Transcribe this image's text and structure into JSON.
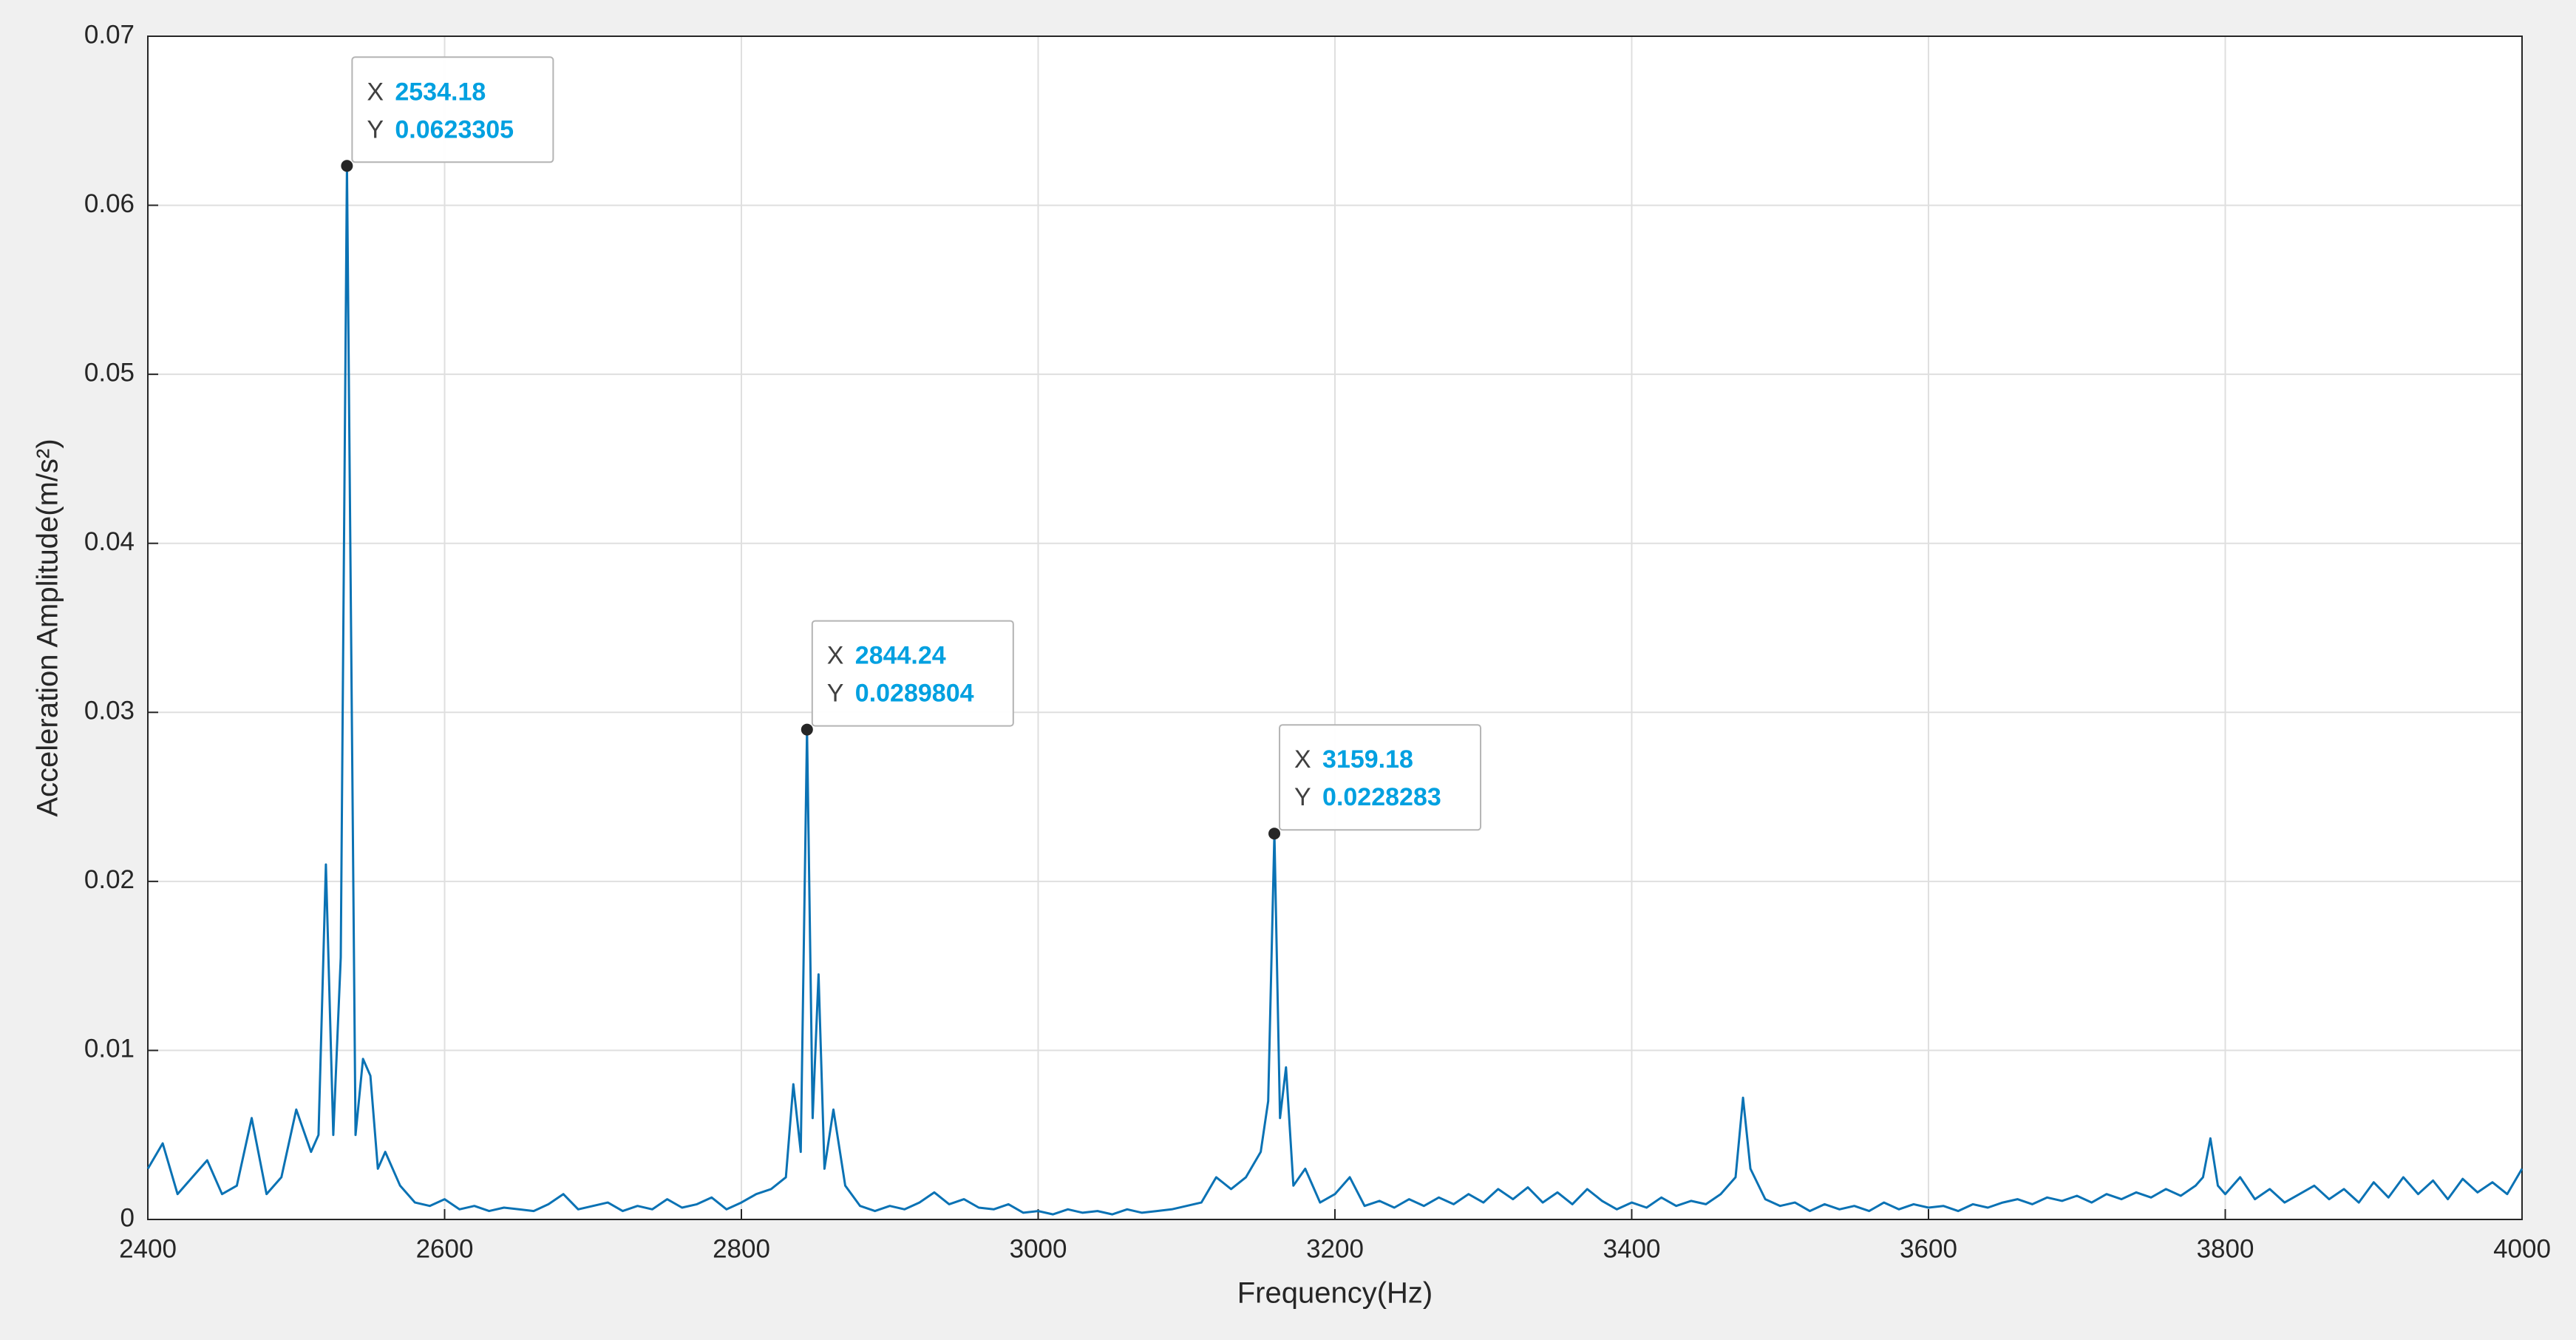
{
  "chart_data": {
    "type": "line",
    "xlabel": "Frequency(Hz)",
    "ylabel": "Acceleration Amplitude(m/s²)",
    "x": [
      2400,
      2410,
      2420,
      2430,
      2440,
      2450,
      2460,
      2470,
      2480,
      2490,
      2500,
      2510,
      2515,
      2520,
      2525,
      2530,
      2534.18,
      2540,
      2545,
      2550,
      2555,
      2560,
      2570,
      2580,
      2590,
      2600,
      2610,
      2620,
      2630,
      2640,
      2650,
      2660,
      2670,
      2680,
      2690,
      2700,
      2710,
      2720,
      2730,
      2740,
      2750,
      2760,
      2770,
      2780,
      2790,
      2800,
      2810,
      2820,
      2830,
      2835,
      2840,
      2844.24,
      2848,
      2852,
      2856,
      2862,
      2870,
      2880,
      2890,
      2900,
      2910,
      2920,
      2930,
      2940,
      2950,
      2960,
      2970,
      2980,
      2990,
      3000,
      3010,
      3020,
      3030,
      3040,
      3050,
      3060,
      3070,
      3080,
      3090,
      3100,
      3110,
      3120,
      3130,
      3140,
      3150,
      3155,
      3159.18,
      3163,
      3167,
      3172,
      3180,
      3190,
      3200,
      3210,
      3220,
      3230,
      3240,
      3250,
      3260,
      3270,
      3280,
      3290,
      3300,
      3310,
      3320,
      3330,
      3340,
      3350,
      3360,
      3370,
      3380,
      3390,
      3400,
      3410,
      3420,
      3430,
      3440,
      3450,
      3460,
      3470,
      3475,
      3480,
      3490,
      3500,
      3510,
      3520,
      3530,
      3540,
      3550,
      3560,
      3570,
      3580,
      3590,
      3600,
      3610,
      3620,
      3630,
      3640,
      3650,
      3660,
      3670,
      3680,
      3690,
      3700,
      3710,
      3720,
      3730,
      3740,
      3750,
      3760,
      3770,
      3780,
      3785,
      3790,
      3795,
      3800,
      3810,
      3820,
      3830,
      3840,
      3850,
      3860,
      3870,
      3880,
      3890,
      3900,
      3910,
      3920,
      3930,
      3940,
      3950,
      3960,
      3970,
      3980,
      3990,
      4000
    ],
    "series": [
      {
        "color": "#0a72b4",
        "values": [
          0.003,
          0.0045,
          0.0015,
          0.0025,
          0.0035,
          0.0015,
          0.002,
          0.006,
          0.0015,
          0.0025,
          0.0065,
          0.004,
          0.005,
          0.021,
          0.005,
          0.0155,
          0.0623305,
          0.005,
          0.0095,
          0.0085,
          0.003,
          0.004,
          0.002,
          0.001,
          0.0008,
          0.0012,
          0.0006,
          0.0008,
          0.0005,
          0.0007,
          0.0006,
          0.0005,
          0.0009,
          0.0015,
          0.0006,
          0.0008,
          0.001,
          0.0005,
          0.0008,
          0.0006,
          0.0012,
          0.0007,
          0.0009,
          0.0013,
          0.0006,
          0.001,
          0.0015,
          0.0018,
          0.0025,
          0.008,
          0.004,
          0.0289804,
          0.006,
          0.0145,
          0.003,
          0.0065,
          0.002,
          0.0008,
          0.0005,
          0.0008,
          0.0006,
          0.001,
          0.0016,
          0.0009,
          0.0012,
          0.0007,
          0.0006,
          0.0009,
          0.0004,
          0.0005,
          0.0003,
          0.0006,
          0.0004,
          0.0005,
          0.0003,
          0.0006,
          0.0004,
          0.0005,
          0.0006,
          0.0008,
          0.001,
          0.0025,
          0.0018,
          0.0025,
          0.004,
          0.007,
          0.0228283,
          0.006,
          0.009,
          0.002,
          0.003,
          0.001,
          0.0015,
          0.0025,
          0.0008,
          0.0011,
          0.0007,
          0.0012,
          0.0008,
          0.0013,
          0.0009,
          0.0015,
          0.001,
          0.0018,
          0.0012,
          0.0019,
          0.001,
          0.0016,
          0.0009,
          0.0018,
          0.0011,
          0.0006,
          0.001,
          0.0007,
          0.0013,
          0.0008,
          0.0011,
          0.0009,
          0.0015,
          0.0025,
          0.0072,
          0.003,
          0.0012,
          0.0008,
          0.001,
          0.0005,
          0.0009,
          0.0006,
          0.0008,
          0.0005,
          0.001,
          0.0006,
          0.0009,
          0.0007,
          0.0008,
          0.0005,
          0.0009,
          0.0007,
          0.001,
          0.0012,
          0.0009,
          0.0013,
          0.0011,
          0.0014,
          0.001,
          0.0015,
          0.0012,
          0.0016,
          0.0013,
          0.0018,
          0.0014,
          0.002,
          0.0025,
          0.0048,
          0.002,
          0.0015,
          0.0025,
          0.0012,
          0.0018,
          0.001,
          0.0015,
          0.002,
          0.0012,
          0.0018,
          0.001,
          0.0022,
          0.0013,
          0.0025,
          0.0015,
          0.0023,
          0.0012,
          0.0024,
          0.0016,
          0.0022,
          0.0015,
          0.003
        ]
      }
    ],
    "xlim": [
      2400,
      4000
    ],
    "xticks": [
      2400,
      2600,
      2800,
      3000,
      3200,
      3400,
      3600,
      3800,
      4000
    ],
    "ylim": [
      0,
      0.07
    ],
    "yticks": [
      0,
      0.01,
      0.02,
      0.03,
      0.04,
      0.05,
      0.06,
      0.07
    ],
    "grid": true,
    "datatips": [
      {
        "x_label": "X",
        "x": 2534.18,
        "y_label": "Y",
        "y": 0.0623305
      },
      {
        "x_label": "X",
        "x": 2844.24,
        "y_label": "Y",
        "y": 0.0289804
      },
      {
        "x_label": "X",
        "x": 3159.18,
        "y_label": "Y",
        "y": 0.0228283
      }
    ]
  }
}
